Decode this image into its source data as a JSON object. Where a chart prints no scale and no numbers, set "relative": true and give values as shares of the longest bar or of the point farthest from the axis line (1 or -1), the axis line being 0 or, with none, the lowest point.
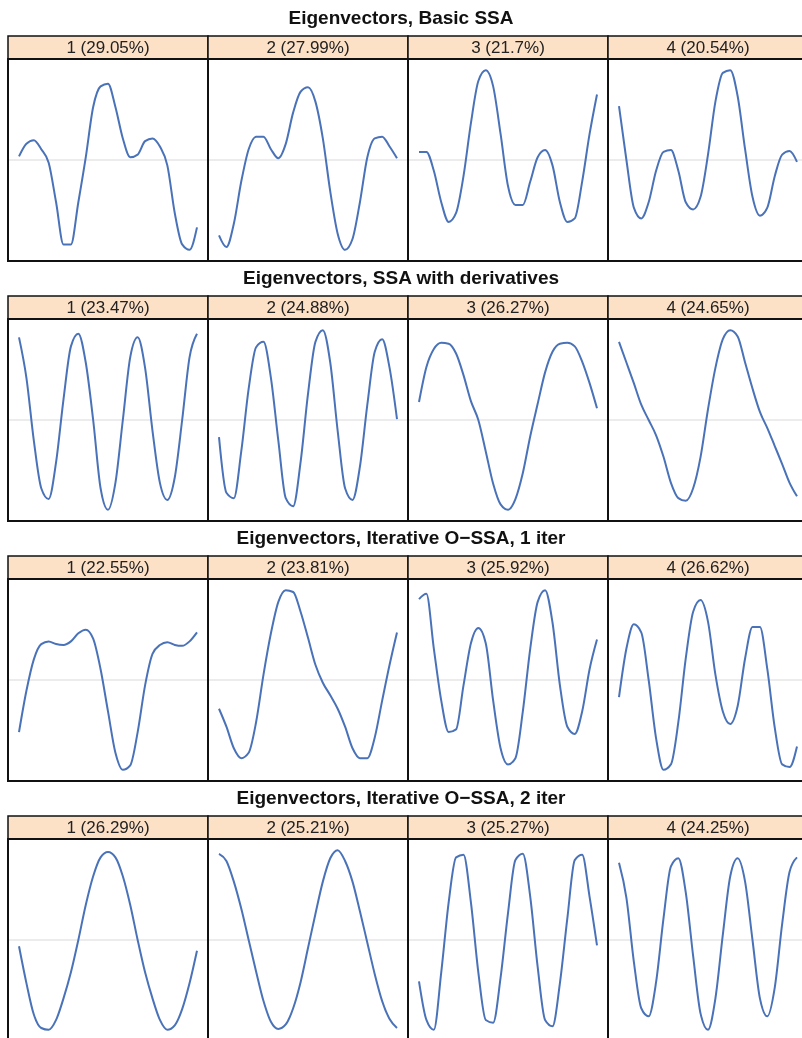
{
  "chart_data": [
    {
      "type": "other",
      "title": "Eigenvectors, Basic SSA"
    },
    {
      "type": "line",
      "title": "1 (29.05%)",
      "relative": true,
      "color": "#4a72b8",
      "categories": [
        null,
        null,
        null,
        null,
        null,
        null,
        null,
        null,
        null,
        null,
        null,
        null,
        null,
        null,
        null,
        null,
        null,
        null,
        null,
        null,
        null,
        null,
        null,
        null,
        null
      ],
      "values": [
        0.04,
        0.18,
        0.22,
        0.12,
        -0.03,
        -0.47,
        -0.94,
        -0.94,
        -0.47,
        0.03,
        0.59,
        0.82,
        0.85,
        0.59,
        0.24,
        0.03,
        0.06,
        0.21,
        0.24,
        0.15,
        -0.06,
        -0.59,
        -0.94,
        -1,
        -0.75
      ]
    },
    {
      "type": "line",
      "title": "2 (27.99%)",
      "relative": true,
      "color": "#4a72b8",
      "categories": [
        null,
        null,
        null,
        null,
        null,
        null,
        null,
        null,
        null,
        null,
        null,
        null,
        null,
        null,
        null,
        null,
        null,
        null,
        null,
        null,
        null,
        null,
        null,
        null,
        null
      ],
      "values": [
        -0.84,
        -0.97,
        -0.71,
        -0.24,
        0.12,
        0.26,
        0.26,
        0.12,
        0.02,
        0.18,
        0.53,
        0.76,
        0.81,
        0.65,
        0.24,
        -0.35,
        -0.82,
        -1,
        -0.88,
        -0.47,
        0.03,
        0.24,
        0.26,
        0.15,
        0.02
      ]
    },
    {
      "type": "line",
      "title": "3 (21.7%)",
      "relative": true,
      "color": "#4a72b8",
      "categories": [
        null,
        null,
        null,
        null,
        null,
        null,
        null,
        null,
        null,
        null,
        null,
        null,
        null,
        null,
        null,
        null,
        null,
        null,
        null,
        null,
        null,
        null,
        null,
        null,
        null
      ],
      "values": [
        0.09,
        0.09,
        -0.12,
        -0.47,
        -0.69,
        -0.59,
        -0.18,
        0.41,
        0.88,
        1,
        0.82,
        0.29,
        -0.29,
        -0.5,
        -0.5,
        -0.24,
        0.03,
        0.11,
        -0.06,
        -0.47,
        -0.69,
        -0.65,
        -0.24,
        0.29,
        0.73
      ]
    },
    {
      "type": "line",
      "title": "4 (20.54%)",
      "relative": true,
      "color": "#4a72b8",
      "categories": [
        null,
        null,
        null,
        null,
        null,
        null,
        null,
        null,
        null,
        null,
        null,
        null,
        null,
        null,
        null,
        null,
        null,
        null,
        null,
        null,
        null,
        null,
        null,
        null,
        null
      ],
      "values": [
        0.6,
        0,
        -0.53,
        -0.65,
        -0.47,
        -0.12,
        0.09,
        0.11,
        -0.12,
        -0.47,
        -0.55,
        -0.41,
        0.06,
        0.65,
        0.97,
        1,
        0.71,
        0.12,
        -0.41,
        -0.62,
        -0.53,
        -0.18,
        0.06,
        0.1,
        -0.02
      ]
    },
    {
      "type": "other",
      "title": "Eigenvectors, SSA with derivatives"
    },
    {
      "type": "line",
      "title": "1 (23.47%)",
      "relative": true,
      "color": "#4a72b8",
      "categories": [
        null,
        null,
        null,
        null,
        null,
        null,
        null,
        null,
        null,
        null,
        null,
        null,
        null,
        null,
        null,
        null,
        null,
        null,
        null,
        null,
        null,
        null,
        null,
        null,
        null
      ],
      "values": [
        0.92,
        0.47,
        -0.23,
        -0.76,
        -0.88,
        -0.47,
        0.23,
        0.82,
        0.96,
        0.64,
        0,
        -0.76,
        -1,
        -0.7,
        0,
        0.7,
        0.92,
        0.58,
        -0.12,
        -0.7,
        -0.89,
        -0.64,
        0,
        0.7,
        0.96
      ]
    },
    {
      "type": "line",
      "title": "2 (24.88%)",
      "relative": true,
      "color": "#4a72b8",
      "categories": [
        null,
        null,
        null,
        null,
        null,
        null,
        null,
        null,
        null,
        null,
        null,
        null,
        null,
        null,
        null,
        null,
        null,
        null,
        null,
        null,
        null,
        null,
        null,
        null,
        null
      ],
      "values": [
        -0.19,
        -0.81,
        -0.87,
        -0.35,
        0.35,
        0.81,
        0.87,
        0.47,
        -0.23,
        -0.87,
        -0.96,
        -0.47,
        0.29,
        0.87,
        1,
        0.64,
        -0.12,
        -0.76,
        -0.89,
        -0.52,
        0.17,
        0.76,
        0.9,
        0.58,
        0.01
      ]
    },
    {
      "type": "line",
      "title": "3 (26.27%)",
      "relative": true,
      "color": "#4a72b8",
      "categories": [
        null,
        null,
        null,
        null,
        null,
        null,
        null,
        null,
        null,
        null,
        null,
        null,
        null,
        null,
        null,
        null,
        null,
        null,
        null,
        null,
        null,
        null,
        null,
        null,
        null
      ],
      "values": [
        0.2,
        0.59,
        0.79,
        0.86,
        0.85,
        0.74,
        0.5,
        0.21,
        0,
        -0.35,
        -0.71,
        -0.94,
        -1,
        -0.88,
        -0.59,
        -0.18,
        0.18,
        0.53,
        0.76,
        0.85,
        0.86,
        0.82,
        0.65,
        0.41,
        0.13
      ]
    },
    {
      "type": "line",
      "title": "4 (24.65%)",
      "relative": true,
      "color": "#4a72b8",
      "categories": [
        null,
        null,
        null,
        null,
        null,
        null,
        null,
        null,
        null,
        null,
        null,
        null,
        null,
        null,
        null,
        null,
        null,
        null,
        null,
        null,
        null,
        null,
        null,
        null,
        null
      ],
      "values": [
        0.87,
        0.64,
        0.41,
        0.17,
        0,
        -0.17,
        -0.41,
        -0.7,
        -0.87,
        -0.9,
        -0.76,
        -0.41,
        0.12,
        0.58,
        0.9,
        1,
        0.93,
        0.64,
        0.35,
        0.09,
        -0.09,
        -0.29,
        -0.49,
        -0.7,
        -0.85
      ]
    },
    {
      "type": "other",
      "title": "Eigenvectors, Iterative O−SSA, 1 iter"
    },
    {
      "type": "line",
      "title": "1 (22.55%)",
      "relative": true,
      "color": "#4a72b8",
      "categories": [
        null,
        null,
        null,
        null,
        null,
        null,
        null,
        null,
        null,
        null,
        null,
        null,
        null,
        null,
        null,
        null,
        null,
        null,
        null,
        null,
        null,
        null,
        null,
        null,
        null
      ],
      "values": [
        -0.58,
        -0.12,
        0.23,
        0.4,
        0.43,
        0.4,
        0.39,
        0.43,
        0.52,
        0.56,
        0.46,
        0.12,
        -0.35,
        -0.81,
        -1,
        -0.95,
        -0.58,
        -0.06,
        0.29,
        0.39,
        0.42,
        0.39,
        0.38,
        0.43,
        0.53
      ]
    },
    {
      "type": "line",
      "title": "2 (23.81%)",
      "relative": true,
      "color": "#4a72b8",
      "categories": [
        null,
        null,
        null,
        null,
        null,
        null,
        null,
        null,
        null,
        null,
        null,
        null,
        null,
        null,
        null,
        null,
        null,
        null,
        null,
        null,
        null,
        null,
        null,
        null,
        null
      ],
      "values": [
        -0.32,
        -0.52,
        -0.76,
        -0.87,
        -0.81,
        -0.47,
        0.06,
        0.52,
        0.87,
        1,
        0.98,
        0.76,
        0.47,
        0.17,
        -0.03,
        -0.17,
        -0.32,
        -0.52,
        -0.76,
        -0.87,
        -0.87,
        -0.64,
        -0.23,
        0.17,
        0.53
      ]
    },
    {
      "type": "line",
      "title": "3 (25.92%)",
      "relative": true,
      "color": "#4a72b8",
      "categories": [
        null,
        null,
        null,
        null,
        null,
        null,
        null,
        null,
        null,
        null,
        null,
        null,
        null,
        null,
        null,
        null,
        null,
        null,
        null,
        null,
        null,
        null,
        null,
        null,
        null
      ],
      "values": [
        0.9,
        0.96,
        0.35,
        -0.23,
        -0.58,
        -0.55,
        -0.06,
        0.41,
        0.58,
        0.41,
        -0.23,
        -0.76,
        -0.94,
        -0.87,
        -0.35,
        0.35,
        0.87,
        1,
        0.64,
        -0.06,
        -0.52,
        -0.6,
        -0.35,
        0.12,
        0.45
      ]
    },
    {
      "type": "line",
      "title": "4 (26.62%)",
      "relative": true,
      "color": "#4a72b8",
      "categories": [
        null,
        null,
        null,
        null,
        null,
        null,
        null,
        null,
        null,
        null,
        null,
        null,
        null,
        null,
        null,
        null,
        null,
        null,
        null,
        null,
        null,
        null,
        null,
        null,
        null
      ],
      "values": [
        -0.19,
        0.35,
        0.62,
        0.53,
        0,
        -0.65,
        -1,
        -0.94,
        -0.47,
        0.24,
        0.76,
        0.89,
        0.65,
        0.06,
        -0.35,
        -0.49,
        -0.29,
        0.24,
        0.59,
        0.59,
        0.12,
        -0.53,
        -0.94,
        -0.97,
        -0.74
      ]
    },
    {
      "type": "other",
      "title": "Eigenvectors, Iterative O−SSA, 2 iter"
    },
    {
      "type": "line",
      "title": "1 (26.29%)",
      "relative": true,
      "color": "#4a72b8",
      "categories": [
        null,
        null,
        null,
        null,
        null,
        null,
        null,
        null,
        null,
        null,
        null,
        null,
        null,
        null,
        null,
        null,
        null,
        null,
        null,
        null,
        null,
        null,
        null,
        null,
        null
      ],
      "values": [
        -0.07,
        -0.48,
        -0.83,
        -0.98,
        -1,
        -0.89,
        -0.65,
        -0.36,
        0,
        0.39,
        0.71,
        0.92,
        0.98,
        0.92,
        0.71,
        0.39,
        0,
        -0.36,
        -0.65,
        -0.89,
        -1,
        -0.95,
        -0.77,
        -0.48,
        -0.12
      ]
    },
    {
      "type": "line",
      "title": "2 (25.21%)",
      "relative": true,
      "color": "#4a72b8",
      "categories": [
        null,
        null,
        null,
        null,
        null,
        null,
        null,
        null,
        null,
        null,
        null,
        null,
        null,
        null,
        null,
        null,
        null,
        null,
        null,
        null,
        null,
        null,
        null,
        null,
        null
      ],
      "values": [
        0.96,
        0.88,
        0.65,
        0.35,
        0,
        -0.35,
        -0.68,
        -0.91,
        -0.99,
        -0.94,
        -0.76,
        -0.47,
        -0.09,
        0.29,
        0.65,
        0.91,
        1,
        0.88,
        0.65,
        0.32,
        -0.03,
        -0.38,
        -0.68,
        -0.88,
        -0.98
      ]
    },
    {
      "type": "line",
      "title": "3 (25.27%)",
      "relative": true,
      "color": "#4a72b8",
      "categories": [
        null,
        null,
        null,
        null,
        null,
        null,
        null,
        null,
        null,
        null,
        null,
        null,
        null,
        null,
        null,
        null,
        null,
        null,
        null,
        null,
        null,
        null,
        null,
        null,
        null
      ],
      "values": [
        -0.46,
        -0.89,
        -1,
        -0.36,
        0.42,
        0.92,
        0.95,
        0.42,
        -0.36,
        -0.89,
        -0.92,
        -0.42,
        0.3,
        0.89,
        0.96,
        0.48,
        -0.3,
        -0.89,
        -0.96,
        -0.48,
        0.24,
        0.89,
        0.95,
        0.48,
        -0.06
      ]
    },
    {
      "type": "line",
      "title": "4 (24.25%)",
      "relative": true,
      "color": "#4a72b8",
      "categories": [
        null,
        null,
        null,
        null,
        null,
        null,
        null,
        null,
        null,
        null,
        null,
        null,
        null,
        null,
        null,
        null,
        null,
        null,
        null,
        null,
        null,
        null,
        null,
        null,
        null
      ],
      "values": [
        0.86,
        0.47,
        -0.24,
        -0.76,
        -0.85,
        -0.47,
        0.24,
        0.82,
        0.91,
        0.53,
        -0.18,
        -0.82,
        -1,
        -0.65,
        0.06,
        0.71,
        0.91,
        0.65,
        0,
        -0.65,
        -0.85,
        -0.53,
        0.18,
        0.76,
        0.92
      ]
    }
  ]
}
